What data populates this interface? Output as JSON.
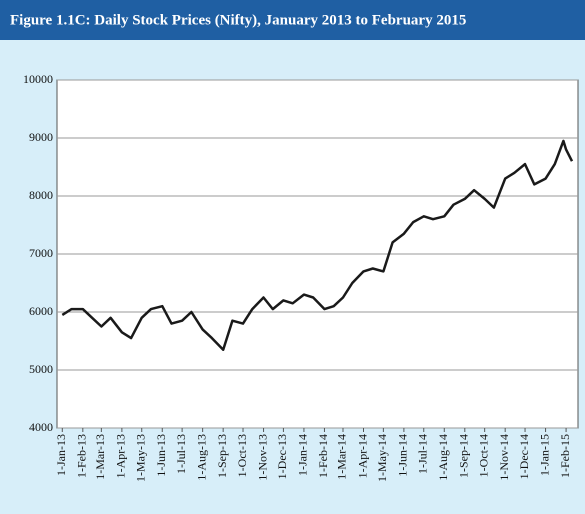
{
  "chart_data": {
    "type": "line",
    "title": "Figure 1.1C:  Daily Stock Prices (Nifty), January 2013 to February 2015",
    "color": "#1a1a1a",
    "x": [
      "2013-01-01",
      "2013-01-15",
      "2013-02-01",
      "2013-02-15",
      "2013-03-01",
      "2013-03-15",
      "2013-04-01",
      "2013-04-15",
      "2013-05-01",
      "2013-05-15",
      "2013-06-01",
      "2013-06-15",
      "2013-07-01",
      "2013-07-15",
      "2013-08-01",
      "2013-08-15",
      "2013-09-01",
      "2013-09-15",
      "2013-10-01",
      "2013-10-15",
      "2013-11-01",
      "2013-11-15",
      "2013-12-01",
      "2013-12-15",
      "2014-01-01",
      "2014-01-15",
      "2014-02-01",
      "2014-02-15",
      "2014-03-01",
      "2014-03-15",
      "2014-04-01",
      "2014-04-15",
      "2014-05-01",
      "2014-05-15",
      "2014-06-01",
      "2014-06-15",
      "2014-07-01",
      "2014-07-15",
      "2014-08-01",
      "2014-08-15",
      "2014-09-01",
      "2014-09-15",
      "2014-10-01",
      "2014-10-15",
      "2014-11-01",
      "2014-11-15",
      "2014-12-01",
      "2014-12-15",
      "2015-01-01",
      "2015-01-15",
      "2015-01-28",
      "2015-02-01",
      "2015-02-10"
    ],
    "values": [
      5950,
      6050,
      6050,
      5900,
      5750,
      5900,
      5650,
      5550,
      5900,
      6050,
      6100,
      5800,
      5850,
      6000,
      5700,
      5550,
      5350,
      5850,
      5800,
      6050,
      6250,
      6050,
      6200,
      6150,
      6300,
      6250,
      6050,
      6100,
      6250,
      6500,
      6700,
      6750,
      6700,
      7200,
      7350,
      7550,
      7650,
      7600,
      7650,
      7850,
      7950,
      8100,
      7950,
      7800,
      8300,
      8400,
      8550,
      8200,
      8300,
      8550,
      8950,
      8800,
      8600
    ],
    "xlim": [
      "2012-12-24",
      "2015-02-19"
    ],
    "xticks": [
      {
        "value": "2013-01-01",
        "label": "1-Jan-13"
      },
      {
        "value": "2013-02-01",
        "label": "1-Feb-13"
      },
      {
        "value": "2013-03-01",
        "label": "1-Mar-13"
      },
      {
        "value": "2013-04-01",
        "label": "1-Apr-13"
      },
      {
        "value": "2013-05-01",
        "label": "1-May-13"
      },
      {
        "value": "2013-06-01",
        "label": "1-Jun-13"
      },
      {
        "value": "2013-07-01",
        "label": "1-Jul-13"
      },
      {
        "value": "2013-08-01",
        "label": "1-Aug-13"
      },
      {
        "value": "2013-09-01",
        "label": "1-Sep-13"
      },
      {
        "value": "2013-10-01",
        "label": "1-Oct-13"
      },
      {
        "value": "2013-11-01",
        "label": "1-Nov-13"
      },
      {
        "value": "2013-12-01",
        "label": "1-Dec-13"
      },
      {
        "value": "2014-01-01",
        "label": "1-Jan-14"
      },
      {
        "value": "2014-02-01",
        "label": "1-Feb-14"
      },
      {
        "value": "2014-03-01",
        "label": "1-Mar-14"
      },
      {
        "value": "2014-04-01",
        "label": "1-Apr-14"
      },
      {
        "value": "2014-05-01",
        "label": "1-May-14"
      },
      {
        "value": "2014-06-01",
        "label": "1-Jun-14"
      },
      {
        "value": "2014-07-01",
        "label": "1-Jul-14"
      },
      {
        "value": "2014-08-01",
        "label": "1-Aug-14"
      },
      {
        "value": "2014-09-01",
        "label": "1-Sep-14"
      },
      {
        "value": "2014-10-01",
        "label": "1-Oct-14"
      },
      {
        "value": "2014-11-01",
        "label": "1-Nov-14"
      },
      {
        "value": "2014-12-01",
        "label": "1-Dec-14"
      },
      {
        "value": "2015-01-01",
        "label": "1-Jan-15"
      },
      {
        "value": "2015-02-01",
        "label": "1-Feb-15"
      }
    ],
    "ylim": [
      4000,
      10000
    ],
    "yticks": [
      4000,
      5000,
      6000,
      7000,
      8000,
      9000,
      10000
    ],
    "grid": true
  }
}
